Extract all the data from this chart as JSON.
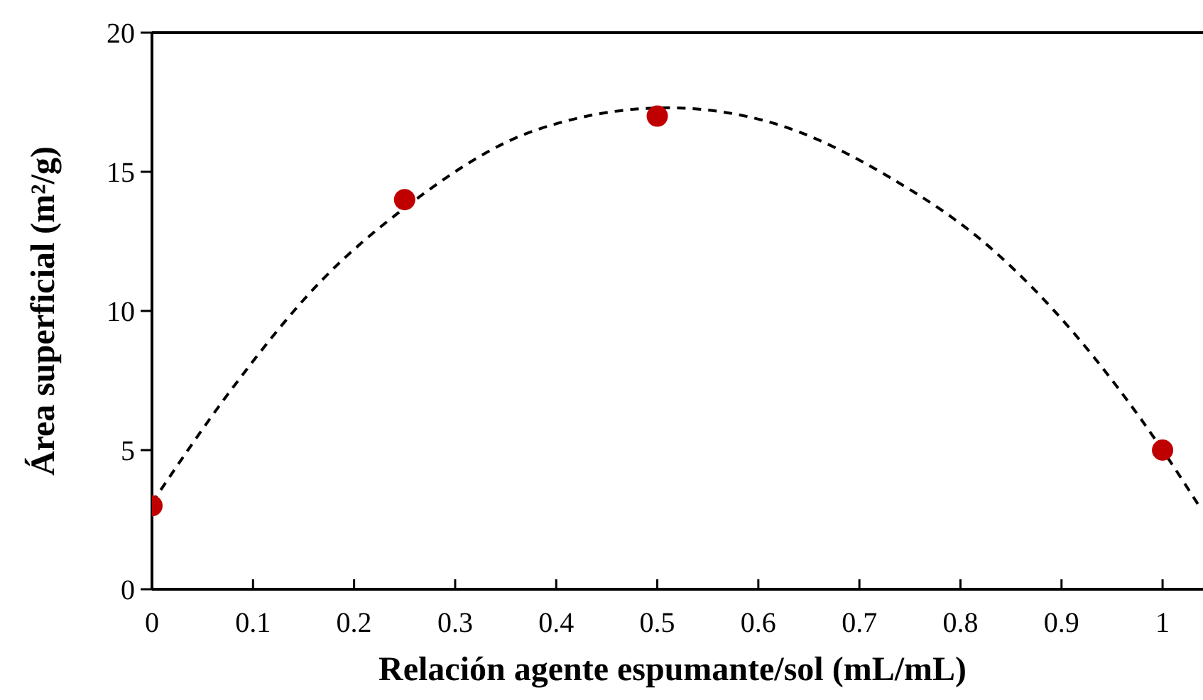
{
  "chart_data": {
    "type": "scatter",
    "xlabel": "Relación agente espumante/sol (mL/mL)",
    "ylabel": "Área superficial (m²/g)",
    "xlim": [
      0,
      1.04
    ],
    "ylim": [
      0,
      20
    ],
    "xticks": [
      0,
      0.1,
      0.2,
      0.3,
      0.4,
      0.5,
      0.6,
      0.7,
      0.8,
      0.9,
      1
    ],
    "yticks": [
      0,
      5,
      10,
      15,
      20
    ],
    "grid": false,
    "series": [
      {
        "color": "#c00000",
        "marker": "circle",
        "x": [
          0,
          0.25,
          0.5,
          1
        ],
        "values": [
          3,
          14,
          17,
          5
        ]
      },
      {
        "type": "line",
        "color": "#000000",
        "marker": "none",
        "line_style": "dashed",
        "x": [
          0,
          0.077,
          0.168,
          0.25,
          0.38,
          0.51,
          0.61,
          0.73,
          0.835,
          0.91,
          1,
          1.036
        ],
        "values": [
          3.1,
          7.1,
          11.1,
          13.7,
          16.5,
          17.3,
          16.8,
          14.8,
          12.1,
          9.3,
          5,
          3
        ]
      }
    ]
  }
}
